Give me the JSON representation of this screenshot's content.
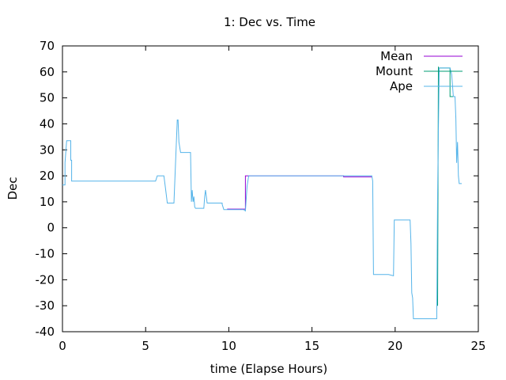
{
  "chart_data": {
    "type": "line",
    "title": "1: Dec vs. Time",
    "xlabel": "time (Elapse Hours)",
    "ylabel": "Dec",
    "xlim": [
      0,
      25
    ],
    "ylim": [
      -40,
      70
    ],
    "xticks": [
      0,
      5,
      10,
      15,
      20,
      25
    ],
    "yticks": [
      -40,
      -30,
      -20,
      -10,
      0,
      10,
      20,
      30,
      40,
      50,
      60,
      70
    ],
    "legend_position": "top-right",
    "series": [
      {
        "name": "Mean",
        "color": "#9400d3",
        "x": [
          9.9,
          11.0,
          11.0,
          16.9,
          16.9,
          18.6
        ],
        "y": [
          7.2,
          7.2,
          20.0,
          20.0,
          19.6,
          19.6
        ]
      },
      {
        "name": "Mount",
        "color": "#009e73",
        "x": [
          22.55,
          22.6,
          22.6,
          23.3,
          23.3,
          23.6
        ],
        "y": [
          -30.0,
          62.0,
          61.5,
          61.5,
          50.5,
          50.5
        ]
      },
      {
        "name": "Ape",
        "color": "#56b4e9",
        "x": [
          0.0,
          0.15,
          0.15,
          0.25,
          0.3,
          0.5,
          0.5,
          0.55,
          0.55,
          5.6,
          5.7,
          6.1,
          6.2,
          6.3,
          6.7,
          6.9,
          6.95,
          7.0,
          7.1,
          7.2,
          7.4,
          7.7,
          7.75,
          7.8,
          7.85,
          7.9,
          7.95,
          8.0,
          8.1,
          8.5,
          8.55,
          8.6,
          8.65,
          8.7,
          9.1,
          9.6,
          9.6,
          9.7,
          9.9,
          10.0,
          10.9,
          11.0,
          11.1,
          11.2,
          11.3,
          18.6,
          18.65,
          18.7,
          19.2,
          19.6,
          19.9,
          19.95,
          20.9,
          20.95,
          21.0,
          21.05,
          21.1,
          21.2,
          22.5,
          22.55,
          22.6,
          22.65,
          22.7,
          23.3,
          23.4,
          23.5,
          23.6,
          23.65,
          23.7,
          23.75,
          23.8,
          23.85,
          23.9,
          24.0
        ],
        "y": [
          16.5,
          16.5,
          25.0,
          33.5,
          33.5,
          33.5,
          26.0,
          26.0,
          18.0,
          18.0,
          20.0,
          20.0,
          15.0,
          9.5,
          9.5,
          41.5,
          41.5,
          33.0,
          29.0,
          29.0,
          29.0,
          29.0,
          10.0,
          14.5,
          10.0,
          12.0,
          8.0,
          7.5,
          7.5,
          7.5,
          12.0,
          14.5,
          12.0,
          9.5,
          9.5,
          9.5,
          9.0,
          7.0,
          7.0,
          7.0,
          7.0,
          6.5,
          16.0,
          20.0,
          20.0,
          20.0,
          18.0,
          -18.0,
          -18.0,
          -18.0,
          -18.5,
          3.0,
          3.0,
          -6.0,
          -25.0,
          -27.0,
          -35.0,
          -35.0,
          -35.0,
          13.0,
          37.5,
          61.5,
          61.5,
          61.5,
          59.0,
          50.5,
          50.5,
          42.0,
          25.0,
          33.0,
          20.0,
          17.0,
          17.0,
          17.0
        ]
      }
    ]
  }
}
